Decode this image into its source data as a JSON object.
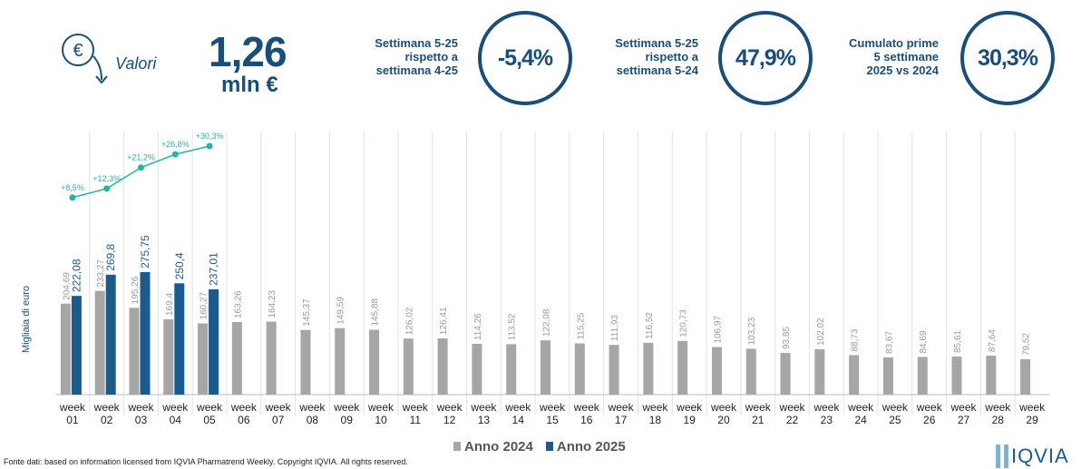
{
  "header": {
    "label": "Valori",
    "value": "1,26",
    "unit": "mln €"
  },
  "kpis": [
    {
      "lines": [
        "Settimana 5-25",
        "rispetto a",
        "settimana 4-25"
      ],
      "value": "-5,4%"
    },
    {
      "lines": [
        "Settimana 5-25",
        "rispetto a",
        "settimana 5-24"
      ],
      "value": "47,9%"
    },
    {
      "lines": [
        "Cumulato prime",
        "5 settimane",
        "2025 vs 2024"
      ],
      "value": "30,3%"
    }
  ],
  "chart_data": {
    "type": "bar",
    "y_label": "Migliaia di euro",
    "categories": [
      "week 01",
      "week 02",
      "week 03",
      "week 04",
      "week 05",
      "week 06",
      "week 07",
      "week 08",
      "week 09",
      "week 10",
      "week 11",
      "week 12",
      "week 13",
      "week 14",
      "week 15",
      "week 16",
      "week 17",
      "week 18",
      "week 19",
      "week 20",
      "week 21",
      "week 22",
      "week 23",
      "week 24",
      "week 25",
      "week 26",
      "week 27",
      "week 28",
      "week 29"
    ],
    "ylim": [
      0,
      600
    ],
    "y2lim": [
      -75,
      38
    ],
    "series": [
      {
        "name": "Anno 2024",
        "color": "#a6a6a6",
        "values": [
          204.69,
          233.27,
          195.26,
          169.4,
          160.27,
          163.26,
          164.23,
          145.37,
          149.59,
          145.88,
          126.02,
          126.41,
          114.26,
          113.52,
          122.08,
          115.25,
          111.93,
          116.52,
          120.73,
          106.97,
          103.23,
          93.85,
          102.02,
          88.73,
          83.67,
          84.69,
          85.61,
          87.64,
          79.52
        ],
        "value_labels": [
          "204,69",
          "233,27",
          "195,26",
          "169,4",
          "160,27",
          "163,26",
          "164,23",
          "145,37",
          "149,59",
          "145,88",
          "126,02",
          "126,41",
          "114,26",
          "113,52",
          "122,08",
          "115,25",
          "111,93",
          "116,52",
          "120,73",
          "106,97",
          "103,23",
          "93,85",
          "102,02",
          "88,73",
          "83,67",
          "84,69",
          "85,61",
          "87,64",
          "79,52"
        ]
      },
      {
        "name": "Anno 2025",
        "color": "#1b5a8c",
        "values": [
          222.08,
          269.8,
          275.75,
          250.4,
          237.01,
          null,
          null,
          null,
          null,
          null,
          null,
          null,
          null,
          null,
          null,
          null,
          null,
          null,
          null,
          null,
          null,
          null,
          null,
          null,
          null,
          null,
          null,
          null,
          null
        ],
        "value_labels": [
          "222,08",
          "269,8",
          "275,75",
          "250,4",
          "237,01",
          null,
          null,
          null,
          null,
          null,
          null,
          null,
          null,
          null,
          null,
          null,
          null,
          null,
          null,
          null,
          null,
          null,
          null,
          null,
          null,
          null,
          null,
          null,
          null
        ]
      },
      {
        "type": "line",
        "axis": "y2",
        "color": "#26b5a2",
        "values": [
          8.5,
          12.3,
          21.2,
          26.8,
          30.3,
          null,
          null,
          null,
          null,
          null,
          null,
          null,
          null,
          null,
          null,
          null,
          null,
          null,
          null,
          null,
          null,
          null,
          null,
          null,
          null,
          null,
          null,
          null,
          null
        ],
        "value_labels": [
          "+8,5%",
          "+12,3%",
          "+21,2%",
          "+26,8%",
          "+30,3%",
          null,
          null,
          null,
          null,
          null,
          null,
          null,
          null,
          null,
          null,
          null,
          null,
          null,
          null,
          null,
          null,
          null,
          null,
          null,
          null,
          null,
          null,
          null,
          null
        ]
      }
    ]
  },
  "footer": {
    "source": "Fonte dati: based on information licensed from IQVIA Pharmatrend Weekly. Copyright IQVIA. All rights reserved.",
    "logo": "IQVIA"
  }
}
